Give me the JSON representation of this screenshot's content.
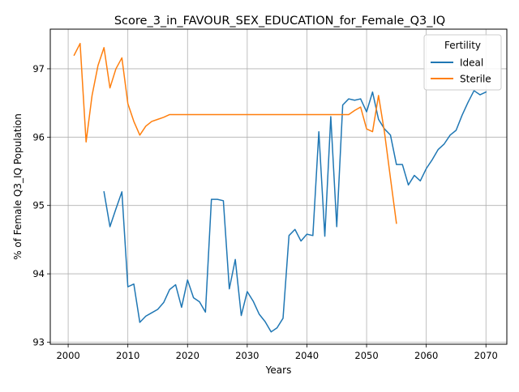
{
  "chart_data": {
    "type": "line",
    "title": "Score_3_in_FAVOUR_SEX_EDUCATION_for_Female_Q3_IQ",
    "xlabel": "Years",
    "ylabel": "% of Female Q3_IQ Population",
    "xlim": [
      1997,
      2073.5
    ],
    "ylim": [
      92.97,
      97.58
    ],
    "x_ticks": [
      2000,
      2010,
      2020,
      2030,
      2040,
      2050,
      2060,
      2070
    ],
    "y_ticks": [
      93,
      94,
      95,
      96,
      97
    ],
    "grid": true,
    "legend": {
      "title": "Fertility",
      "position": "top-right"
    },
    "series": [
      {
        "name": "Ideal",
        "color": "#1f77b4",
        "x": [
          2006,
          2007,
          2008,
          2009,
          2010,
          2011,
          2012,
          2013,
          2014,
          2015,
          2016,
          2017,
          2018,
          2019,
          2020,
          2021,
          2022,
          2023,
          2024,
          2025,
          2026,
          2027,
          2028,
          2029,
          2030,
          2031,
          2032,
          2033,
          2034,
          2035,
          2036,
          2037,
          2038,
          2039,
          2040,
          2041,
          2042,
          2043,
          2044,
          2045,
          2046,
          2047,
          2048,
          2049,
          2050,
          2051,
          2052,
          2053,
          2054,
          2055,
          2056,
          2057,
          2058,
          2059,
          2060,
          2061,
          2062,
          2063,
          2064,
          2065,
          2066,
          2067,
          2068,
          2069,
          2070
        ],
        "y": [
          95.2,
          94.69,
          94.95,
          95.2,
          93.81,
          93.85,
          93.29,
          93.38,
          93.43,
          93.48,
          93.58,
          93.77,
          93.84,
          93.51,
          93.91,
          93.65,
          93.59,
          93.44,
          95.09,
          95.09,
          95.07,
          93.78,
          94.21,
          93.39,
          93.74,
          93.6,
          93.41,
          93.3,
          93.15,
          93.21,
          93.35,
          94.56,
          94.65,
          94.48,
          94.58,
          94.56,
          96.08,
          94.55,
          96.3,
          94.69,
          96.47,
          96.56,
          96.54,
          96.56,
          96.37,
          96.66,
          96.26,
          96.12,
          96.03,
          95.6,
          95.6,
          95.3,
          95.44,
          95.36,
          95.54,
          95.67,
          95.82,
          95.9,
          96.03,
          96.1,
          96.32,
          96.51,
          96.68,
          96.62,
          96.66
        ]
      },
      {
        "name": "Sterile",
        "color": "#ff7f0e",
        "x": [
          2001,
          2002,
          2003,
          2004,
          2005,
          2006,
          2007,
          2008,
          2009,
          2010,
          2011,
          2012,
          2013,
          2014,
          2015,
          2016,
          2017,
          2018,
          2019,
          2020,
          2021,
          2022,
          2023,
          2024,
          2025,
          2026,
          2027,
          2028,
          2029,
          2030,
          2031,
          2032,
          2033,
          2034,
          2035,
          2036,
          2037,
          2038,
          2039,
          2040,
          2041,
          2042,
          2043,
          2044,
          2045,
          2046,
          2047,
          2048,
          2049,
          2050,
          2051,
          2052,
          2053,
          2054,
          2055
        ],
        "y": [
          97.2,
          97.37,
          95.93,
          96.61,
          97.05,
          97.31,
          96.72,
          97.0,
          97.16,
          96.49,
          96.23,
          96.03,
          96.16,
          96.23,
          96.26,
          96.29,
          96.33,
          96.33,
          96.33,
          96.33,
          96.33,
          96.33,
          96.33,
          96.33,
          96.33,
          96.33,
          96.33,
          96.33,
          96.33,
          96.33,
          96.33,
          96.33,
          96.33,
          96.33,
          96.33,
          96.33,
          96.33,
          96.33,
          96.33,
          96.33,
          96.33,
          96.33,
          96.33,
          96.33,
          96.33,
          96.33,
          96.33,
          96.39,
          96.44,
          96.12,
          96.08,
          96.61,
          96.07,
          95.4,
          94.74
        ]
      }
    ]
  }
}
